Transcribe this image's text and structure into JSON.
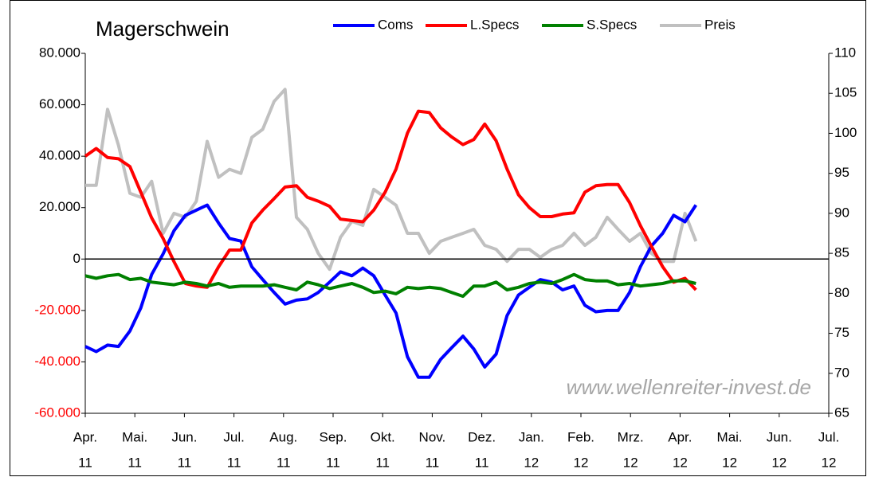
{
  "chart_data": {
    "type": "line",
    "title": "Magerschwein",
    "watermark": "www.wellenreiter-invest.de",
    "xlim": [
      0,
      15
    ],
    "xticks": [
      {
        "value": 0,
        "label": "Apr."
      },
      {
        "value": 1,
        "label": "Mai."
      },
      {
        "value": 2,
        "label": "Jun."
      },
      {
        "value": 3,
        "label": "Jul."
      },
      {
        "value": 4,
        "label": "Aug."
      },
      {
        "value": 5,
        "label": "Sep."
      },
      {
        "value": 6,
        "label": "Okt."
      },
      {
        "value": 7,
        "label": "Nov."
      },
      {
        "value": 8,
        "label": "Dez."
      },
      {
        "value": 9,
        "label": "Jan."
      },
      {
        "value": 10,
        "label": "Feb."
      },
      {
        "value": 11,
        "label": "Mrz."
      },
      {
        "value": 12,
        "label": "Apr."
      },
      {
        "value": 13,
        "label": "Mai."
      },
      {
        "value": 14,
        "label": "Jun."
      },
      {
        "value": 15,
        "label": "Jul."
      }
    ],
    "xtick_years": [
      "11",
      "11",
      "11",
      "11",
      "11",
      "11",
      "11",
      "11",
      "11",
      "12",
      "12",
      "12",
      "12",
      "12",
      "12",
      "12"
    ],
    "ylim": [
      -60000,
      80000
    ],
    "yticks": [
      {
        "value": -60000,
        "label": "-60.000"
      },
      {
        "value": -40000,
        "label": "-40.000"
      },
      {
        "value": -20000,
        "label": "-20.000"
      },
      0,
      {
        "value": 20000,
        "label": "20.000"
      },
      {
        "value": 40000,
        "label": "40.000"
      },
      {
        "value": 60000,
        "label": "60.000"
      },
      {
        "value": 80000,
        "label": "80.000"
      }
    ],
    "negative_tick_color": "#ff0000",
    "y2lim": [
      65,
      110
    ],
    "y2ticks": [
      65,
      70,
      75,
      80,
      85,
      90,
      95,
      100,
      105,
      110
    ],
    "grid": false,
    "zero_line": true,
    "legend": "top",
    "x": [
      0,
      0.22,
      0.45,
      0.67,
      0.9,
      1.12,
      1.34,
      1.57,
      1.79,
      2.02,
      2.24,
      2.46,
      2.69,
      2.91,
      3.14,
      3.36,
      3.58,
      3.81,
      4.03,
      4.26,
      4.48,
      4.7,
      4.93,
      5.15,
      5.38,
      5.6,
      5.82,
      6.05,
      6.27,
      6.5,
      6.72,
      6.94,
      7.17,
      7.39,
      7.62,
      7.84,
      8.06,
      8.29,
      8.51,
      8.74,
      8.96,
      9.18,
      9.41,
      9.63,
      9.86,
      10.08,
      10.3,
      10.53,
      10.75,
      10.98,
      11.2,
      11.42,
      11.65,
      11.87,
      12.1,
      12.32
    ],
    "series": [
      {
        "name": "Coms",
        "color": "#0000ff",
        "values": [
          -34000,
          -36000,
          -33500,
          -34000,
          -28000,
          -19000,
          -6000,
          2000,
          11000,
          17000,
          19000,
          21000,
          14000,
          8000,
          7000,
          -3000,
          -8000,
          -13000,
          -17500,
          -16000,
          -15500,
          -13000,
          -9000,
          -5000,
          -6500,
          -3500,
          -6500,
          -14000,
          -21000,
          -38000,
          -46000,
          -46000,
          -39000,
          -34500,
          -30000,
          -35000,
          -42000,
          -37000,
          -22000,
          -14000,
          -11000,
          -8000,
          -9000,
          -12000,
          -10500,
          -18000,
          -20500,
          -20000,
          -20000,
          -13000,
          -3000,
          5000,
          10000,
          17000,
          14500,
          21000
        ]
      },
      {
        "name": "L.Specs",
        "color": "#ff0000",
        "values": [
          40000,
          43000,
          39500,
          39000,
          36000,
          26000,
          16000,
          8000,
          -1000,
          -9500,
          -10500,
          -11000,
          -3000,
          3500,
          3500,
          14000,
          19000,
          23500,
          28000,
          28500,
          24000,
          22500,
          20500,
          15500,
          15000,
          14500,
          19000,
          26000,
          35000,
          49000,
          57500,
          57000,
          51000,
          47500,
          44500,
          46500,
          52500,
          46000,
          35000,
          25000,
          20000,
          16500,
          16500,
          17500,
          18000,
          26000,
          28500,
          29000,
          29000,
          22000,
          13000,
          5000,
          -3000,
          -9000,
          -7500,
          -12000
        ]
      },
      {
        "name": "S.Specs",
        "color": "#008000",
        "values": [
          -6500,
          -7500,
          -6500,
          -6000,
          -8000,
          -7500,
          -9000,
          -9500,
          -10000,
          -9000,
          -9500,
          -10500,
          -9500,
          -11000,
          -10500,
          -10500,
          -10500,
          -10000,
          -11000,
          -12000,
          -9000,
          -10000,
          -11500,
          -10500,
          -9500,
          -11000,
          -13000,
          -12500,
          -13500,
          -11000,
          -11500,
          -11000,
          -11500,
          -13000,
          -14500,
          -10500,
          -10500,
          -9000,
          -12000,
          -11000,
          -9500,
          -9000,
          -9500,
          -8000,
          -6000,
          -8000,
          -8500,
          -8500,
          -10000,
          -9500,
          -10500,
          -10000,
          -9500,
          -8500,
          -8500,
          -9500
        ]
      },
      {
        "name": "Preis",
        "color": "#c0c0c0",
        "axis": "y2",
        "values": [
          93.5,
          93.5,
          103,
          98.5,
          92.5,
          92,
          94,
          87.5,
          90,
          89.5,
          91.5,
          99,
          94.5,
          95.5,
          95,
          99.5,
          100.5,
          104,
          105.5,
          89.5,
          88,
          85,
          83,
          87,
          89,
          88.5,
          93,
          92,
          91,
          87.5,
          87.5,
          85,
          86.5,
          87,
          87.5,
          88,
          86,
          85.5,
          84,
          85.5,
          85.5,
          84.5,
          85.5,
          86,
          87.5,
          86,
          87,
          89.5,
          88,
          86.5,
          87.5,
          85,
          84,
          84,
          90,
          86.5
        ]
      }
    ]
  }
}
